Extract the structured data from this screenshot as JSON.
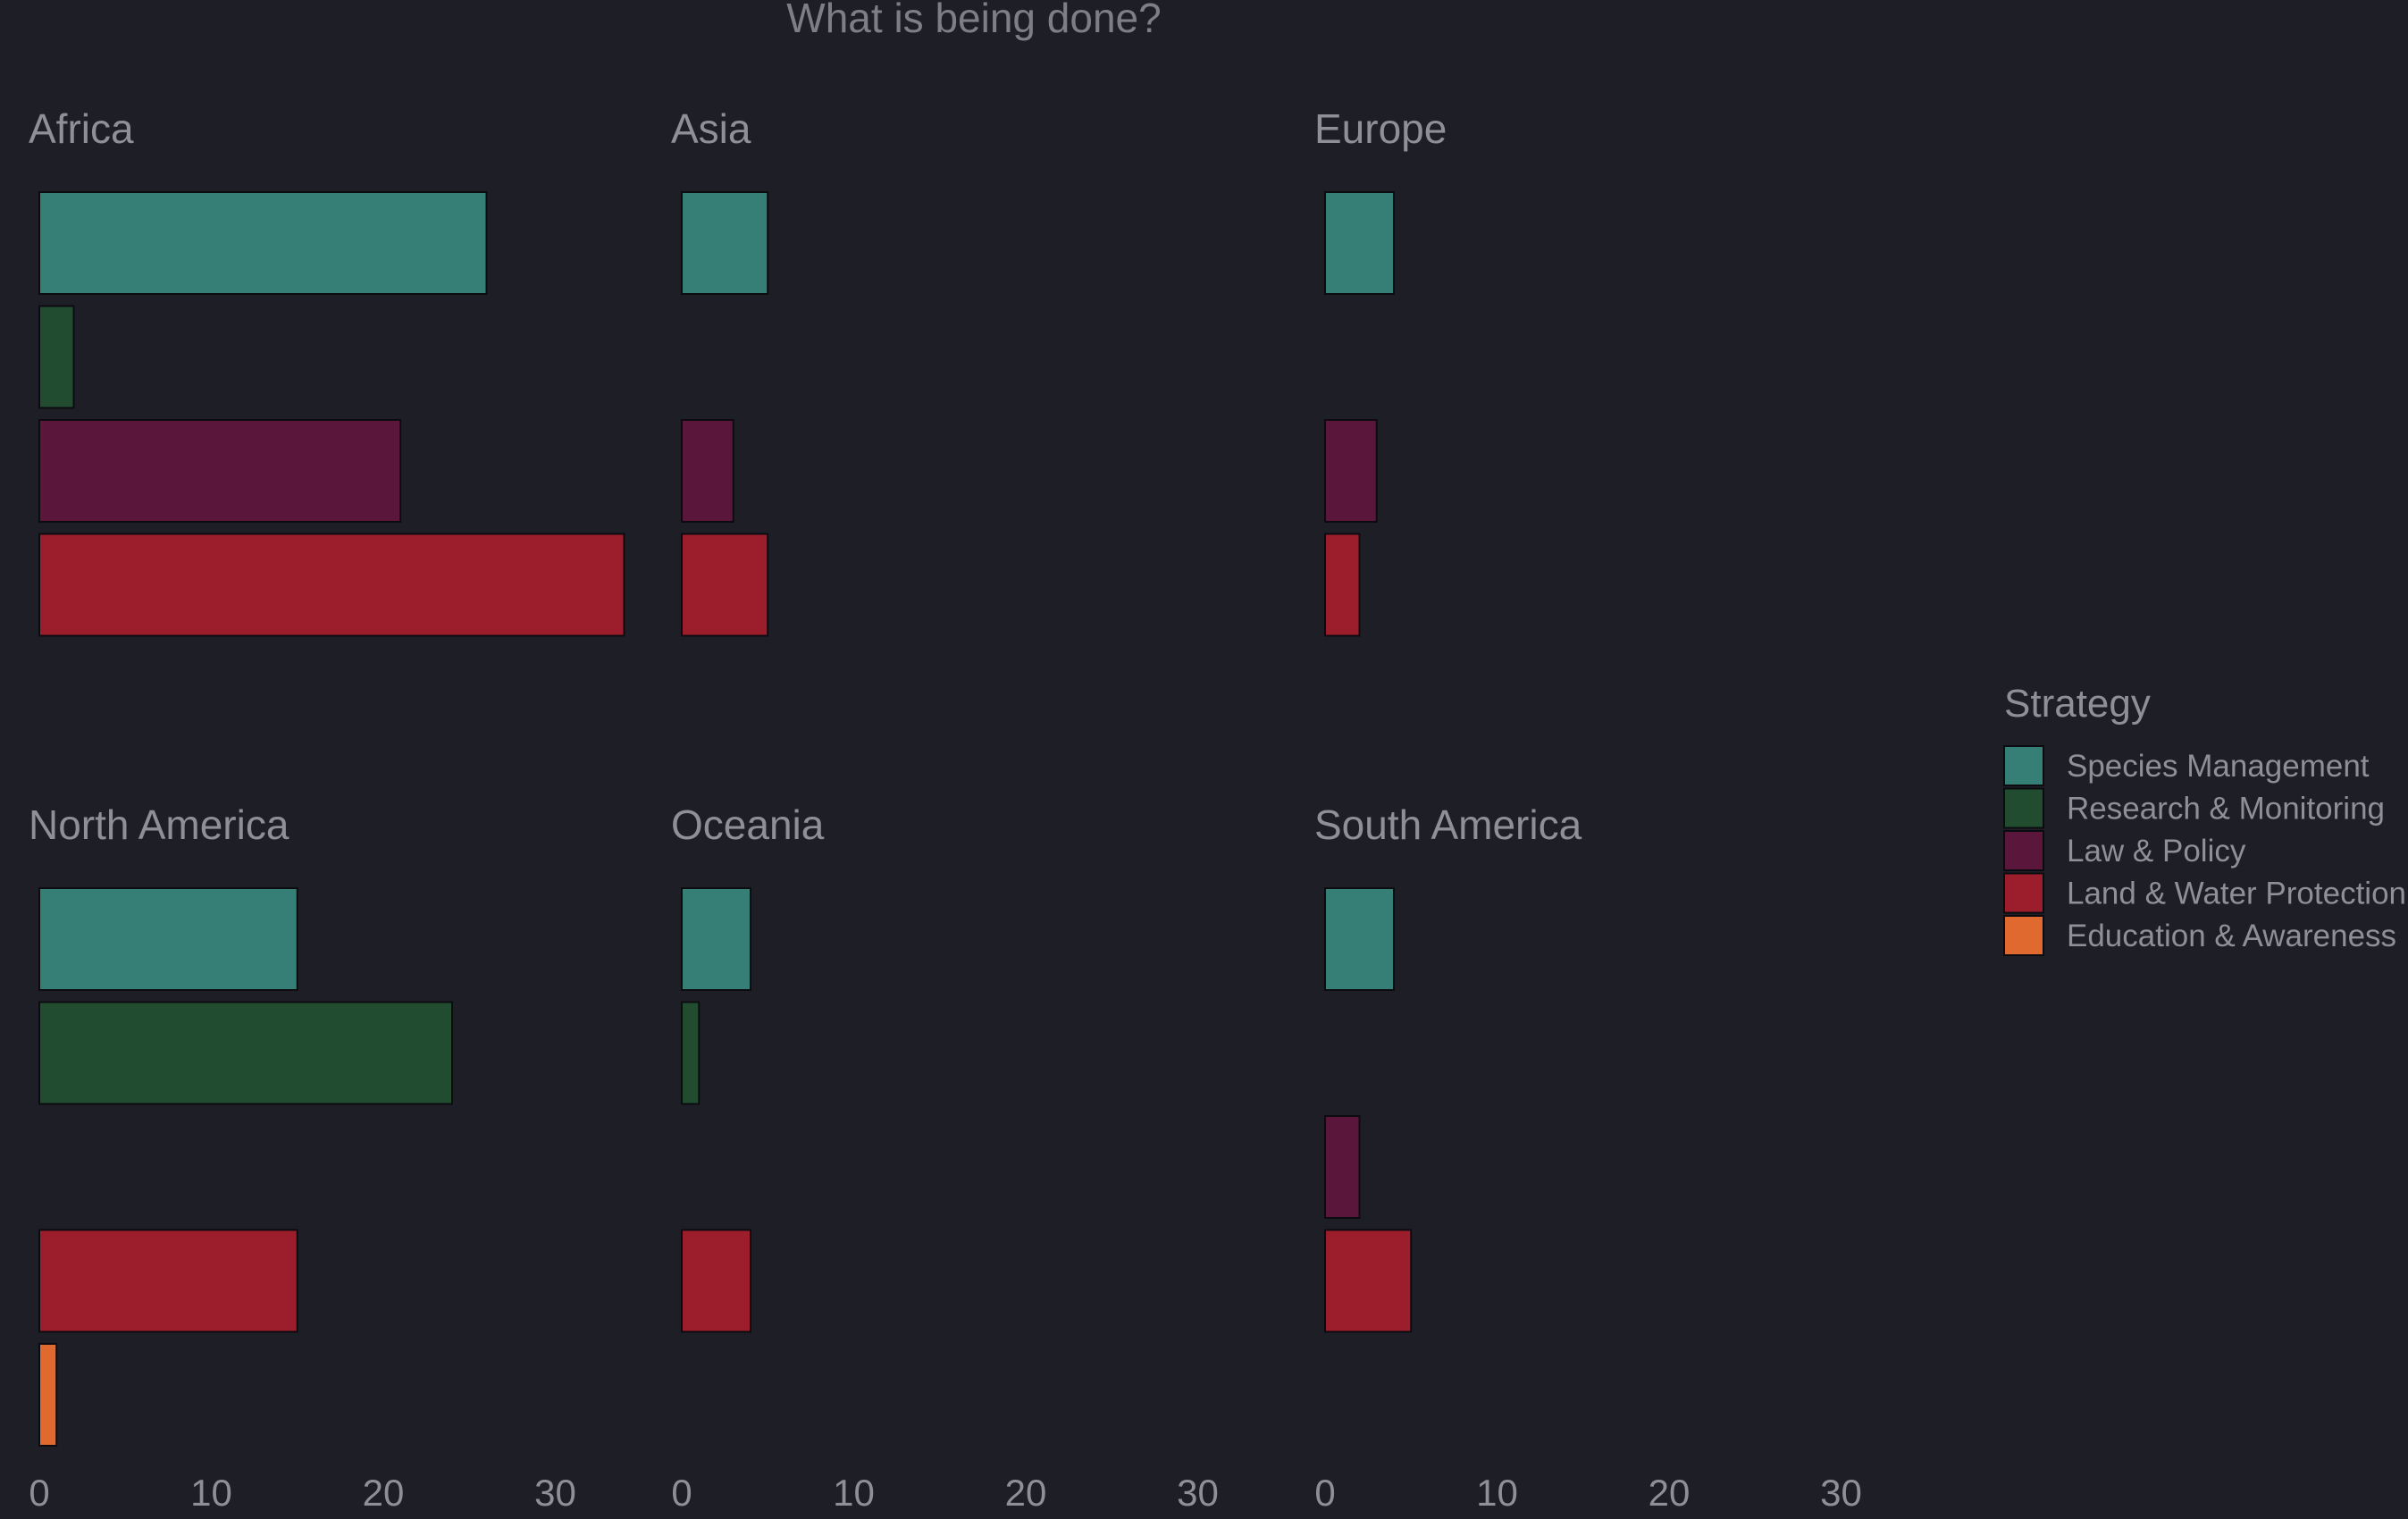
{
  "title": "What is being done?",
  "legend": {
    "title": "Strategy",
    "items": [
      {
        "label": "Species Management",
        "color": "#357f77"
      },
      {
        "label": "Research & Monitoring",
        "color": "#224c30"
      },
      {
        "label": "Law & Policy",
        "color": "#5b173b"
      },
      {
        "label": "Land & Water Protection",
        "color": "#9c1e2d"
      },
      {
        "label": "Education & Awareness",
        "color": "#e0692f"
      }
    ]
  },
  "chart_data": {
    "type": "bar",
    "orientation": "horizontal",
    "title": "What is being done?",
    "legend_position": "right",
    "grid": false,
    "xlim": [
      0,
      35
    ],
    "x_ticks": [
      0,
      10,
      20,
      30
    ],
    "categories": [
      "Species Management",
      "Research & Monitoring",
      "Law & Policy",
      "Land & Water Protection",
      "Education & Awareness"
    ],
    "facets": [
      {
        "name": "Africa",
        "values": [
          26,
          2,
          21,
          34,
          0
        ]
      },
      {
        "name": "Asia",
        "values": [
          5,
          0,
          3,
          5,
          0
        ]
      },
      {
        "name": "Europe",
        "values": [
          4,
          0,
          3,
          2,
          0
        ]
      },
      {
        "name": "North America",
        "values": [
          15,
          24,
          0,
          15,
          1
        ]
      },
      {
        "name": "Oceania",
        "values": [
          4,
          1,
          0,
          4,
          0
        ]
      },
      {
        "name": "South America",
        "values": [
          4,
          0,
          2,
          5,
          0
        ]
      }
    ]
  }
}
